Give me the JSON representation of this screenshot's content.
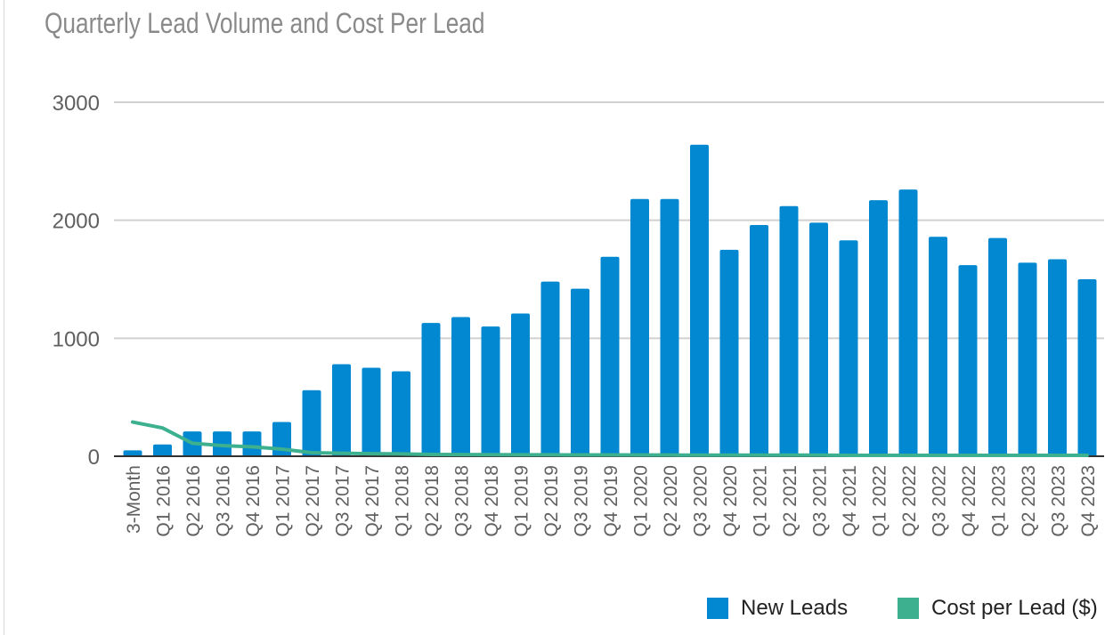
{
  "chart_data": {
    "type": "bar",
    "title": "Quarterly Lead Volume and Cost Per Lead",
    "xlabel": "",
    "ylabel": "",
    "ylim": [
      0,
      3000
    ],
    "yticks": [
      0,
      1000,
      2000,
      3000
    ],
    "grid": true,
    "legend_placement": "bottom-right",
    "categories": [
      "3-Month",
      "Q1 2016",
      "Q2 2016",
      "Q3 2016",
      "Q4 2016",
      "Q1 2017",
      "Q2 2017",
      "Q3 2017",
      "Q4 2017",
      "Q1 2018",
      "Q2 2018",
      "Q3 2018",
      "Q4 2018",
      "Q1 2019",
      "Q2 2019",
      "Q3 2019",
      "Q4 2019",
      "Q1 2020",
      "Q2 2020",
      "Q3 2020",
      "Q4 2020",
      "Q1 2021",
      "Q2 2021",
      "Q3 2021",
      "Q4 2021",
      "Q1 2022",
      "Q2 2022",
      "Q3 2022",
      "Q4 2022",
      "Q1 2023",
      "Q2 2023",
      "Q3 2023",
      "Q4 2023"
    ],
    "series": [
      {
        "name": "New Leads",
        "type": "bar",
        "color": "#0288d1",
        "values": [
          50,
          100,
          210,
          210,
          210,
          290,
          560,
          780,
          750,
          720,
          1130,
          1180,
          1100,
          1210,
          1480,
          1420,
          1690,
          2180,
          2180,
          2640,
          1750,
          1960,
          2120,
          1980,
          1830,
          2170,
          2260,
          1860,
          1620,
          1850,
          1640,
          1670,
          1500
        ]
      },
      {
        "name": "Cost per Lead ($)",
        "type": "line",
        "color": "#3cb08f",
        "values": [
          290,
          240,
          110,
          90,
          80,
          60,
          30,
          25,
          22,
          20,
          15,
          14,
          13,
          12,
          12,
          11,
          11,
          10,
          10,
          9,
          9,
          9,
          9,
          9,
          8,
          8,
          8,
          8,
          8,
          8,
          8,
          8,
          8
        ]
      }
    ]
  },
  "colors": {
    "axis": "#333333",
    "grid": "#d0d0d0",
    "tick_text": "#606060"
  }
}
